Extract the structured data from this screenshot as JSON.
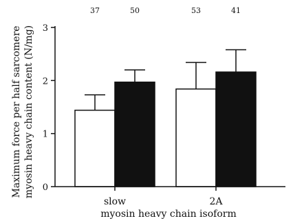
{
  "chart_data": {
    "type": "bar",
    "xlabel": "myosin heavy chain isoform",
    "ylabel": [
      "Maximum force per half sarcomere",
      "myosin heavy chain content (N/mg)"
    ],
    "categories": [
      "slow",
      "2A"
    ],
    "ylim": [
      0,
      3
    ],
    "yticks": [
      0,
      1,
      2,
      3
    ],
    "grid": false,
    "series": [
      {
        "fill": "#ffffff",
        "values": [
          1.44,
          1.84
        ],
        "errors": [
          0.29,
          0.5
        ],
        "n": [
          "37",
          "53"
        ]
      },
      {
        "fill": "#111111",
        "values": [
          1.97,
          2.16
        ],
        "errors": [
          0.23,
          0.42
        ],
        "n": [
          "50",
          "41"
        ]
      }
    ]
  }
}
